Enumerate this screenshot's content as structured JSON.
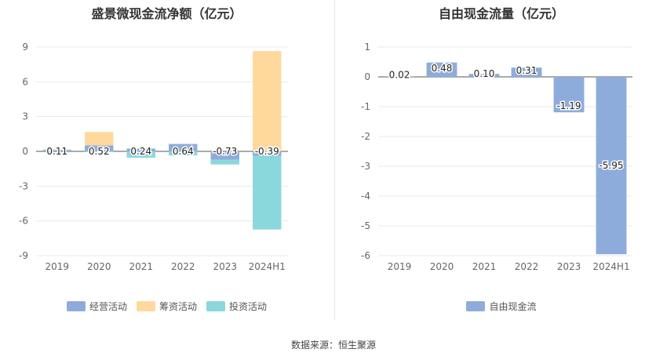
{
  "source_text": "数据来源：恒生聚源",
  "chart_data": [
    {
      "type": "bar",
      "title": "盛景微现金流净额（亿元）",
      "categories": [
        "2019",
        "2020",
        "2021",
        "2022",
        "2023",
        "2024H1"
      ],
      "yticks": [
        "9",
        "6",
        "3",
        "0",
        "-3",
        "-6",
        "-9"
      ],
      "ylim": [
        -9,
        9
      ],
      "series": [
        {
          "name": "经营活动",
          "color": "#8eacdb",
          "values": [
            0.11,
            0.52,
            0.24,
            0.64,
            -0.73,
            -0.39
          ],
          "labels": [
            "0.11",
            "0.52",
            "0.24",
            "0.64",
            "-0.73",
            "-0.39"
          ]
        },
        {
          "name": "筹资活动",
          "color": "#ffd89c",
          "values": [
            0,
            1.15,
            0,
            0,
            0,
            8.65
          ]
        },
        {
          "name": "投资活动",
          "color": "#8ad7dc",
          "values": [
            0.05,
            -0.05,
            -0.55,
            -0.35,
            -0.4,
            -6.35
          ]
        }
      ]
    },
    {
      "type": "bar",
      "title": "自由现金流量（亿元）",
      "categories": [
        "2019",
        "2020",
        "2021",
        "2022",
        "2023",
        "2024H1"
      ],
      "yticks": [
        "1",
        "0",
        "-1",
        "-2",
        "-3",
        "-4",
        "-5",
        "-6"
      ],
      "ylim": [
        -6,
        1
      ],
      "series": [
        {
          "name": "自由现金流",
          "color": "#8eacdb",
          "values": [
            0.02,
            0.48,
            0.1,
            0.31,
            -1.19,
            -5.95
          ],
          "labels": [
            "0.02",
            "0.48",
            "0.10",
            "0.31",
            "-1.19",
            "-5.95"
          ]
        }
      ]
    }
  ]
}
